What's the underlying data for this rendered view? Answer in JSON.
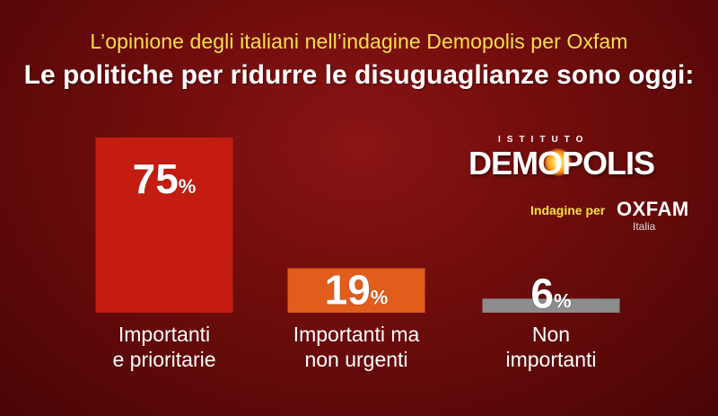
{
  "header": {
    "subtitle": "L’opinione degli italiani nell’indagine Demopolis per Oxfam",
    "title": "Le politiche per ridurre le disuguaglianze sono oggi:"
  },
  "logo": {
    "small_text": "ISTITUTO",
    "main_text": "DEMOPOLIS",
    "survey_label": "Indagine per",
    "partner": "OXFAM",
    "partner_sub": "Italia"
  },
  "chart_data": {
    "type": "bar",
    "title": "Le politiche per ridurre le disuguaglianze sono oggi:",
    "unit": "%",
    "ylim": [
      0,
      100
    ],
    "grid": false,
    "categories": [
      [
        "Importanti",
        "e prioritarie"
      ],
      [
        "Importanti ma",
        "non urgenti"
      ],
      [
        "Non",
        "importanti"
      ]
    ],
    "values": [
      75,
      19,
      6
    ],
    "colors": [
      "#c41c10",
      "#e25d1c",
      "#8c8c8c"
    ]
  }
}
